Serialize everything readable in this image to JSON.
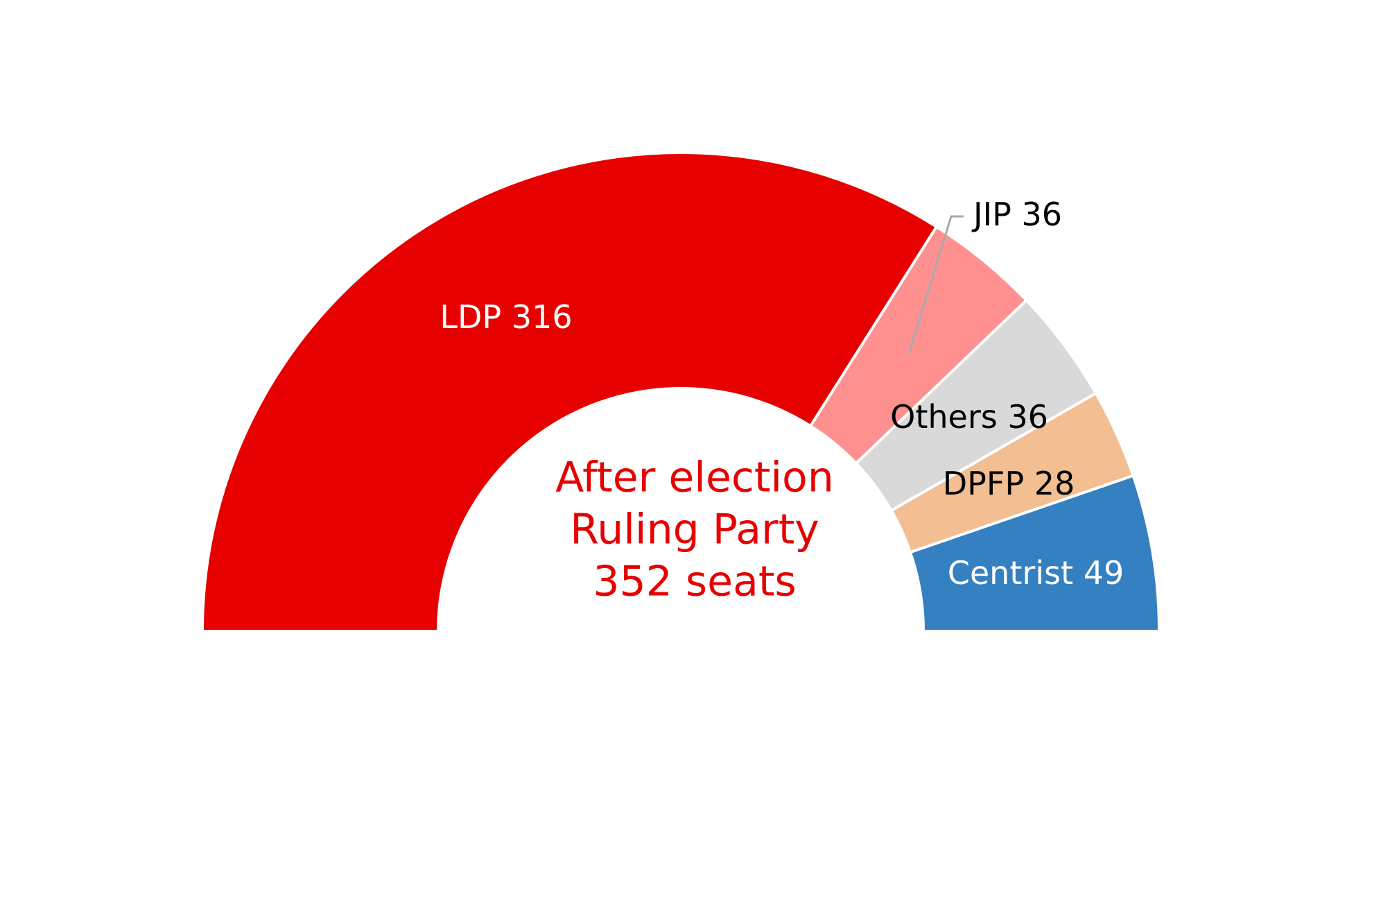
{
  "chart_data": {
    "type": "semi-donut",
    "categories": [
      "LDP",
      "JIP",
      "Others",
      "DPFP",
      "Centrist"
    ],
    "values": [
      316,
      36,
      36,
      28,
      49
    ],
    "colors": [
      "#e60000",
      "#ff9090",
      "#d9d9d9",
      "#f2be92",
      "#3580c0"
    ],
    "annotations": [
      "After election",
      "Ruling Party",
      "352 seats"
    ]
  }
}
